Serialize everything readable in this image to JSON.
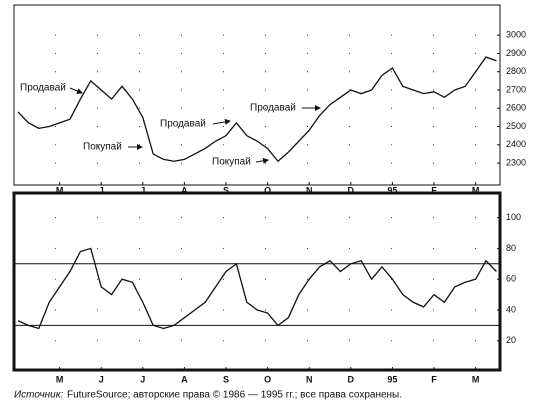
{
  "chart_data": [
    {
      "type": "line",
      "categories": [
        null,
        null,
        null,
        null,
        "M",
        null,
        null,
        null,
        "J",
        null,
        null,
        null,
        "J",
        null,
        null,
        null,
        "A",
        null,
        null,
        null,
        "S",
        null,
        null,
        null,
        "O",
        null,
        null,
        null,
        "N",
        null,
        null,
        null,
        "D",
        null,
        null,
        null,
        "95",
        null,
        null,
        null,
        "F",
        null,
        null,
        null,
        "M",
        null,
        null
      ],
      "values": [
        2580,
        2520,
        2490,
        2500,
        2520,
        2540,
        2650,
        2750,
        2700,
        2650,
        2720,
        2650,
        2550,
        2350,
        2320,
        2310,
        2320,
        2350,
        2380,
        2420,
        2450,
        2520,
        2450,
        2420,
        2380,
        2310,
        2360,
        2420,
        2480,
        2560,
        2620,
        2660,
        2700,
        2680,
        2700,
        2780,
        2820,
        2720,
        2700,
        2680,
        2690,
        2660,
        2700,
        2720,
        2800,
        2880,
        2860
      ],
      "color": "#111111",
      "ylim": [
        2180,
        3165
      ],
      "yticks": [
        2300,
        2400,
        2500,
        2600,
        2700,
        2800,
        2900,
        3000
      ],
      "grid": true,
      "annotations": [
        {
          "text": "Продавай"
        },
        {
          "text": "Покупай"
        },
        {
          "text": "Продавай"
        },
        {
          "text": "Покупай"
        },
        {
          "text": "Продавай"
        }
      ]
    },
    {
      "type": "line",
      "categories": [
        null,
        null,
        null,
        null,
        "M",
        null,
        null,
        null,
        "J",
        null,
        null,
        null,
        "J",
        null,
        null,
        null,
        "A",
        null,
        null,
        null,
        "S",
        null,
        null,
        null,
        "O",
        null,
        null,
        null,
        "N",
        null,
        null,
        null,
        "D",
        null,
        null,
        null,
        "95",
        null,
        null,
        null,
        "F",
        null,
        null,
        null,
        "M",
        null,
        null
      ],
      "values": [
        33,
        30,
        28,
        45,
        55,
        65,
        78,
        80,
        55,
        50,
        60,
        58,
        45,
        30,
        28,
        30,
        35,
        40,
        45,
        55,
        65,
        70,
        45,
        40,
        38,
        30,
        35,
        50,
        60,
        68,
        72,
        65,
        70,
        72,
        60,
        68,
        60,
        50,
        45,
        42,
        50,
        45,
        55,
        58,
        60,
        72,
        65
      ],
      "color": "#111111",
      "ylim": [
        1,
        116
      ],
      "yticks": [
        20,
        40,
        60,
        80,
        100
      ],
      "grid": true,
      "reference_lines": [
        70,
        30
      ]
    }
  ],
  "source": {
    "label": "Источник:",
    "text": "FutureSource; авторские права © 1986 — 1995 гг.; все права сохранены."
  }
}
